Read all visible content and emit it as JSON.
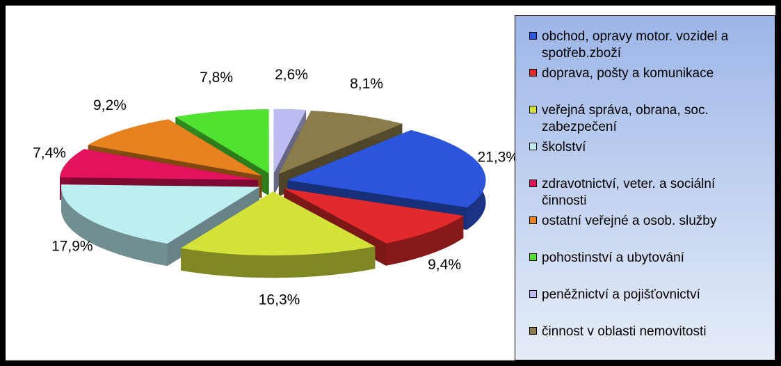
{
  "chart_data": {
    "type": "pie3d",
    "categories": [
      "obchod, opravy motor. vozidel a spotřeb.zboží",
      "doprava, pošty a komunikace",
      "veřejná správa, obrana, soc. zabezpečení",
      "školství",
      "zdravotnictví, veter. a sociální činnosti",
      "ostatní veřejné a osob. služby",
      "pohostinství a ubytování",
      "peněžnictví a pojišťovnictví",
      "činnost v oblasti nemovitosti"
    ],
    "values": [
      21.3,
      9.4,
      16.3,
      17.9,
      7.4,
      9.2,
      7.8,
      2.6,
      8.1
    ],
    "value_labels": [
      "21,3%",
      "9,4%",
      "16,3%",
      "17,9%",
      "7,4%",
      "9,2%",
      "7,8%",
      "2,6%",
      "8,1%"
    ],
    "colors": [
      "#2b55dc",
      "#e2292b",
      "#d4e23a",
      "#bdeef2",
      "#e3125c",
      "#e8821e",
      "#52e332",
      "#bcbcf2",
      "#8c7c4a"
    ],
    "legend": "right"
  }
}
